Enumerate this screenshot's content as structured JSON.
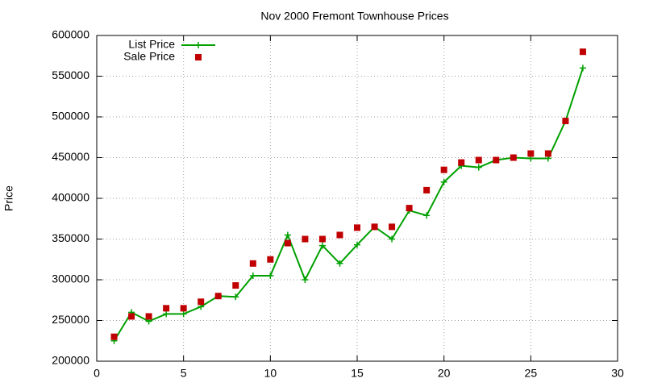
{
  "chart_data": {
    "type": "line",
    "title": "Nov 2000 Fremont Townhouse Prices",
    "y_label": "Price",
    "x": [
      1,
      2,
      3,
      4,
      5,
      6,
      7,
      8,
      9,
      10,
      11,
      12,
      13,
      14,
      15,
      16,
      17,
      18,
      19,
      20,
      21,
      22,
      23,
      24,
      25,
      26,
      27,
      28
    ],
    "series": [
      {
        "name": "List Price",
        "color": "#00a000",
        "style": "linespoints",
        "marker": "plus",
        "values": [
          225000,
          260000,
          249000,
          258000,
          258000,
          267000,
          280000,
          279000,
          305000,
          305000,
          355000,
          300000,
          342000,
          320000,
          343000,
          365000,
          350000,
          385000,
          379000,
          420000,
          440000,
          438000,
          447000,
          450000,
          449000,
          449000,
          495000,
          560000
        ]
      },
      {
        "name": "Sale Price",
        "color": "#c00000",
        "style": "points",
        "marker": "square",
        "values": [
          230000,
          255000,
          255000,
          265000,
          265000,
          273000,
          280000,
          293000,
          320000,
          325000,
          345000,
          350000,
          350000,
          355000,
          364000,
          365000,
          365000,
          388000,
          410000,
          435000,
          444000,
          447000,
          447000,
          450000,
          455000,
          455000,
          495000,
          580000
        ]
      }
    ],
    "xlim": [
      0,
      30
    ],
    "xticks": [
      0,
      5,
      10,
      15,
      20,
      25,
      30
    ],
    "ylim": [
      200000,
      600000
    ],
    "yticks": [
      200000,
      250000,
      300000,
      350000,
      400000,
      450000,
      500000,
      550000,
      600000
    ],
    "grid": true,
    "legend": "top-left"
  }
}
